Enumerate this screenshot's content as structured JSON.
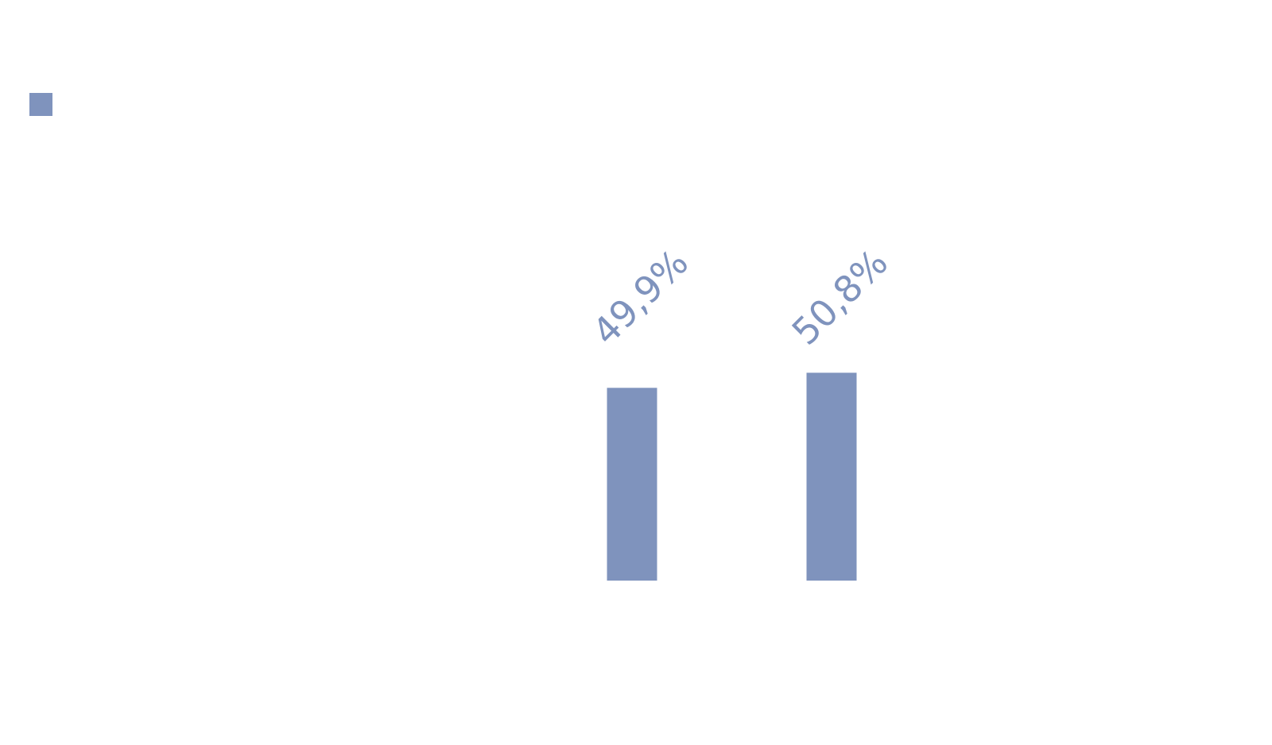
{
  "chart_data": {
    "type": "bar",
    "categories": [
      null,
      null
    ],
    "values": [
      49.9,
      50.8
    ],
    "value_labels": [
      "49,9%",
      "50,8%"
    ],
    "color": "#7f93bd",
    "ylim": [
      38.4,
      68.3
    ],
    "legend": true
  }
}
